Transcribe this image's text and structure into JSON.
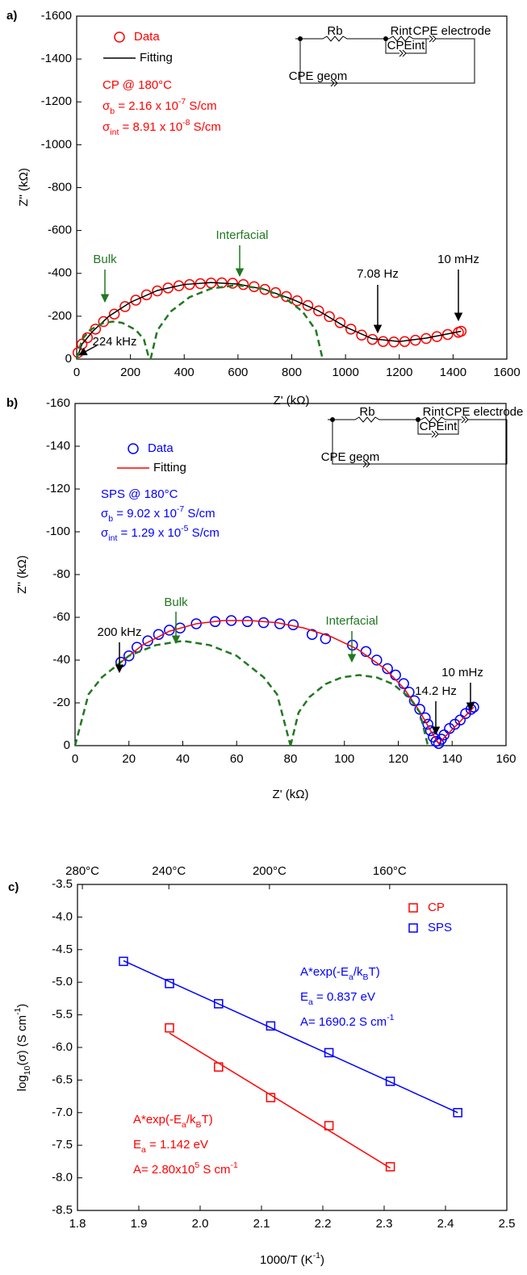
{
  "chart_data": [
    {
      "type": "scatter",
      "panel_label": "a)",
      "legend": "top-left",
      "x_label": [
        {
          "text": "Z' (kΩ)"
        }
      ],
      "y_label": [
        {
          "text": "Z'' (kΩ)"
        }
      ],
      "xlim": [
        0,
        1600
      ],
      "xticks": [
        0,
        200,
        400,
        600,
        800,
        1000,
        1200,
        1400,
        1600
      ],
      "ylim": [
        0,
        -1600
      ],
      "yticks": [
        0,
        -200,
        -400,
        -600,
        -800,
        -1000,
        -1200,
        -1400,
        -1600
      ],
      "series": [
        {
          "name": "Data",
          "color": "#ff0000",
          "marker": "circle",
          "x": [
            5,
            20,
            40,
            70,
            100,
            140,
            180,
            220,
            260,
            300,
            340,
            380,
            420,
            460,
            500,
            540,
            580,
            620,
            660,
            700,
            740,
            780,
            820,
            860,
            900,
            940,
            980,
            1020,
            1060,
            1100,
            1140,
            1180,
            1220,
            1260,
            1300,
            1340,
            1380,
            1420,
            1430
          ],
          "y": [
            -30,
            -70,
            -100,
            -140,
            -175,
            -210,
            -245,
            -275,
            -300,
            -318,
            -332,
            -342,
            -348,
            -352,
            -355,
            -356,
            -354,
            -348,
            -338,
            -325,
            -310,
            -292,
            -272,
            -250,
            -225,
            -198,
            -170,
            -140,
            -112,
            -92,
            -82,
            -80,
            -82,
            -88,
            -96,
            -105,
            -115,
            -125,
            -130
          ]
        },
        {
          "name": "Fitting",
          "color": "#000000",
          "line": "solid",
          "x": [
            0,
            20,
            60,
            120,
            200,
            300,
            400,
            500,
            600,
            700,
            800,
            900,
            1000,
            1100,
            1200,
            1300,
            1430
          ],
          "y": [
            0,
            -70,
            -130,
            -200,
            -265,
            -320,
            -348,
            -357,
            -350,
            -325,
            -280,
            -225,
            -150,
            -95,
            -82,
            -98,
            -130
          ]
        },
        {
          "color": "#217821",
          "line": "dashed",
          "x": [
            0,
            20,
            50,
            100,
            135,
            170,
            220,
            250,
            270
          ],
          "y": [
            0,
            -92,
            -136,
            -169,
            -175,
            -169,
            -136,
            -92,
            0
          ]
        },
        {
          "color": "#217821",
          "line": "dashed",
          "x": [
            275,
            300,
            350,
            420,
            500,
            595,
            690,
            770,
            840,
            890,
            915
          ],
          "y": [
            0,
            -134,
            -222,
            -289,
            -329,
            -345,
            -329,
            -289,
            -222,
            -134,
            0
          ]
        }
      ],
      "info": [
        {
          "color": "#ff0000",
          "lines": [
            [
              {
                "text": "CP @ 180°C"
              }
            ],
            [
              {
                "text": "σ"
              },
              {
                "text": "b",
                "script": "sub"
              },
              {
                "text": " = 2.16 x 10"
              },
              {
                "text": "-7",
                "script": "super"
              },
              {
                "text": " S/cm"
              }
            ],
            [
              {
                "text": "σ"
              },
              {
                "text": "int",
                "script": "sub"
              },
              {
                "text": " = 8.91 x 10"
              },
              {
                "text": "-8",
                "script": "super"
              },
              {
                "text": " S/cm"
              }
            ]
          ]
        }
      ],
      "annotations": [
        {
          "text": "Bulk",
          "color": "#217821"
        },
        {
          "text": "Interfacial",
          "color": "#217821"
        },
        {
          "text": "7.08 Hz",
          "color": "#000000"
        },
        {
          "text": "10 mHz",
          "color": "#000000"
        },
        {
          "text": "224 kHz",
          "color": "#000000"
        }
      ],
      "circuit": [
        "Rb",
        "Rint",
        "CPE electrode",
        "CPEint",
        "CPE geom"
      ]
    },
    {
      "type": "scatter",
      "panel_label": "b)",
      "legend": "top-left",
      "x_label": [
        {
          "text": "Z' (kΩ)"
        }
      ],
      "y_label": [
        {
          "text": "Z'' (kΩ)"
        }
      ],
      "xlim": [
        0,
        160
      ],
      "xticks": [
        0,
        20,
        40,
        60,
        80,
        100,
        120,
        140,
        160
      ],
      "ylim": [
        0,
        -160
      ],
      "yticks": [
        0,
        -20,
        -40,
        -60,
        -80,
        -100,
        -120,
        -140,
        -160
      ],
      "series": [
        {
          "name": "Data",
          "color": "#0000ff",
          "marker": "circle",
          "x": [
            17,
            20,
            23,
            27,
            31,
            35,
            39,
            45,
            52,
            58,
            64,
            70,
            76,
            81,
            88,
            93,
            103,
            108,
            112,
            116,
            119,
            122,
            124,
            126,
            128,
            130,
            131,
            132,
            133,
            134,
            135,
            136,
            137,
            139,
            141,
            143,
            145,
            147,
            148
          ],
          "y": [
            -39,
            -42,
            -46,
            -49,
            -52,
            -54,
            -55,
            -57,
            -58,
            -58.5,
            -58,
            -57.5,
            -57,
            -56.5,
            -52,
            -50,
            -47,
            -44,
            -40,
            -36,
            -33,
            -29,
            -25,
            -21,
            -17,
            -13,
            -10,
            -7,
            -4,
            -2,
            -1,
            -3,
            -5,
            -8,
            -10,
            -12,
            -15,
            -17,
            -18
          ]
        },
        {
          "name": "Fitting",
          "color": "#ff0000",
          "line": "solid",
          "x": [
            17,
            25,
            35,
            45,
            55,
            65,
            75,
            85,
            95,
            105,
            115,
            122,
            128,
            132,
            135,
            138,
            142,
            148
          ],
          "y": [
            -39,
            -47,
            -53.5,
            -57,
            -58.5,
            -58.5,
            -57.5,
            -55,
            -51,
            -45,
            -36,
            -27,
            -16,
            -7,
            -1,
            -5,
            -10,
            -18
          ]
        },
        {
          "color": "#217821",
          "line": "dashed",
          "x": [
            0,
            5,
            10,
            20,
            30,
            40,
            50,
            60,
            70,
            75,
            80
          ],
          "y": [
            0,
            -24,
            -32,
            -42,
            -47,
            -49,
            -47,
            -42,
            -32,
            -24,
            0
          ]
        },
        {
          "color": "#217821",
          "line": "dashed",
          "x": [
            80,
            83,
            87,
            93,
            99,
            105.5,
            112,
            118,
            124,
            128,
            131
          ],
          "y": [
            0,
            -15.5,
            -22.7,
            -28.8,
            -31.9,
            -33,
            -31.9,
            -28.8,
            -22.7,
            -15.5,
            0
          ]
        }
      ],
      "info": [
        {
          "color": "#0000ff",
          "lines": [
            [
              {
                "text": "SPS @ 180°C"
              }
            ],
            [
              {
                "text": "σ"
              },
              {
                "text": "b",
                "script": "sub"
              },
              {
                "text": " = 9.02 x 10"
              },
              {
                "text": "-7",
                "script": "super"
              },
              {
                "text": " S/cm"
              }
            ],
            [
              {
                "text": "σ"
              },
              {
                "text": "int",
                "script": "sub"
              },
              {
                "text": " = 1.29 x 10"
              },
              {
                "text": "-5",
                "script": "super"
              },
              {
                "text": " S/cm"
              }
            ]
          ]
        }
      ],
      "annotations": [
        {
          "text": "200 kHz",
          "color": "#000000"
        },
        {
          "text": "Bulk",
          "color": "#217821"
        },
        {
          "text": "Interfacial",
          "color": "#217821"
        },
        {
          "text": "14.2 Hz",
          "color": "#000000"
        },
        {
          "text": "10 mHz",
          "color": "#000000"
        }
      ],
      "circuit": [
        "Rb",
        "Rint",
        "CPE electrode",
        "CPEint",
        "CPE geom"
      ]
    },
    {
      "type": "scatter",
      "panel_label": "c)",
      "legend": "top-right",
      "x_label": [
        {
          "text": "1000/T (K"
        },
        {
          "text": "-1",
          "script": "super"
        },
        {
          "text": ")"
        }
      ],
      "y_label": [
        {
          "text": "log"
        },
        {
          "text": "10",
          "script": "sub"
        },
        {
          "text": "(σ) (S cm"
        },
        {
          "text": "-1",
          "script": "super"
        },
        {
          "text": ")"
        }
      ],
      "xlim": [
        1.8,
        2.5
      ],
      "xticks": [
        1.8,
        1.9,
        {
          "value": 2,
          "label": "2.0"
        },
        2.1,
        2.2,
        2.3,
        2.4,
        2.5
      ],
      "x2ticks": [
        {
          "value": 1.808,
          "label": "280°C"
        },
        {
          "value": 1.949,
          "label": "240°C"
        },
        {
          "value": 2.113,
          "label": "200°C"
        },
        {
          "value": 2.309,
          "label": "160°C"
        }
      ],
      "ylim": [
        -8.5,
        -3.5
      ],
      "yticks": [
        -3.5,
        {
          "value": -4,
          "label": "-4.0"
        },
        -4.5,
        {
          "value": -5,
          "label": "-5.0"
        },
        -5.5,
        {
          "value": -6,
          "label": "-6.0"
        },
        -6.5,
        {
          "value": -7,
          "label": "-7.0"
        },
        -7.5,
        {
          "value": -8,
          "label": "-8.0"
        },
        -8.5
      ],
      "series": [
        {
          "name": "CP",
          "color": "#ff0000",
          "marker": "square",
          "x": [
            1.95,
            2.03,
            2.115,
            2.21,
            2.31
          ],
          "y": [
            -5.7,
            -6.3,
            -6.77,
            -7.2,
            -7.83
          ]
        },
        {
          "name": "SPS",
          "color": "#0000ff",
          "marker": "square",
          "x": [
            1.875,
            1.95,
            2.03,
            2.115,
            2.21,
            2.31,
            2.42
          ],
          "y": [
            -4.68,
            -5.02,
            -5.33,
            -5.67,
            -6.08,
            -6.52,
            -7.0
          ]
        },
        {
          "color": "#ff0000",
          "line": "solid",
          "x": [
            1.95,
            2.31
          ],
          "y": [
            -5.78,
            -7.85
          ]
        },
        {
          "color": "#0000ff",
          "line": "solid",
          "x": [
            1.875,
            2.42
          ],
          "y": [
            -4.67,
            -7.0
          ]
        }
      ],
      "info": [
        {
          "color": "#0000ff",
          "lines": [
            [
              {
                "text": "A*exp(-E"
              },
              {
                "text": "a",
                "script": "sub"
              },
              {
                "text": "/k"
              },
              {
                "text": "B",
                "script": "sub"
              },
              {
                "text": "T)"
              }
            ],
            [
              {
                "text": "E"
              },
              {
                "text": "a",
                "script": "sub"
              },
              {
                "text": " = 0.837 eV"
              }
            ],
            [
              {
                "text": "A= 1690.2 S cm"
              },
              {
                "text": "-1",
                "script": "super"
              }
            ]
          ]
        },
        {
          "color": "#ff0000",
          "lines": [
            [
              {
                "text": "A*exp(-E"
              },
              {
                "text": "a",
                "script": "sub"
              },
              {
                "text": "/k"
              },
              {
                "text": "B",
                "script": "sub"
              },
              {
                "text": "T)"
              }
            ],
            [
              {
                "text": "E"
              },
              {
                "text": "a",
                "script": "sub"
              },
              {
                "text": " = 1.142 eV"
              }
            ],
            [
              {
                "text": "A= 2.80x10"
              },
              {
                "text": "5",
                "script": "super"
              },
              {
                "text": " S cm"
              },
              {
                "text": "-1",
                "script": "super"
              }
            ]
          ]
        }
      ]
    }
  ]
}
